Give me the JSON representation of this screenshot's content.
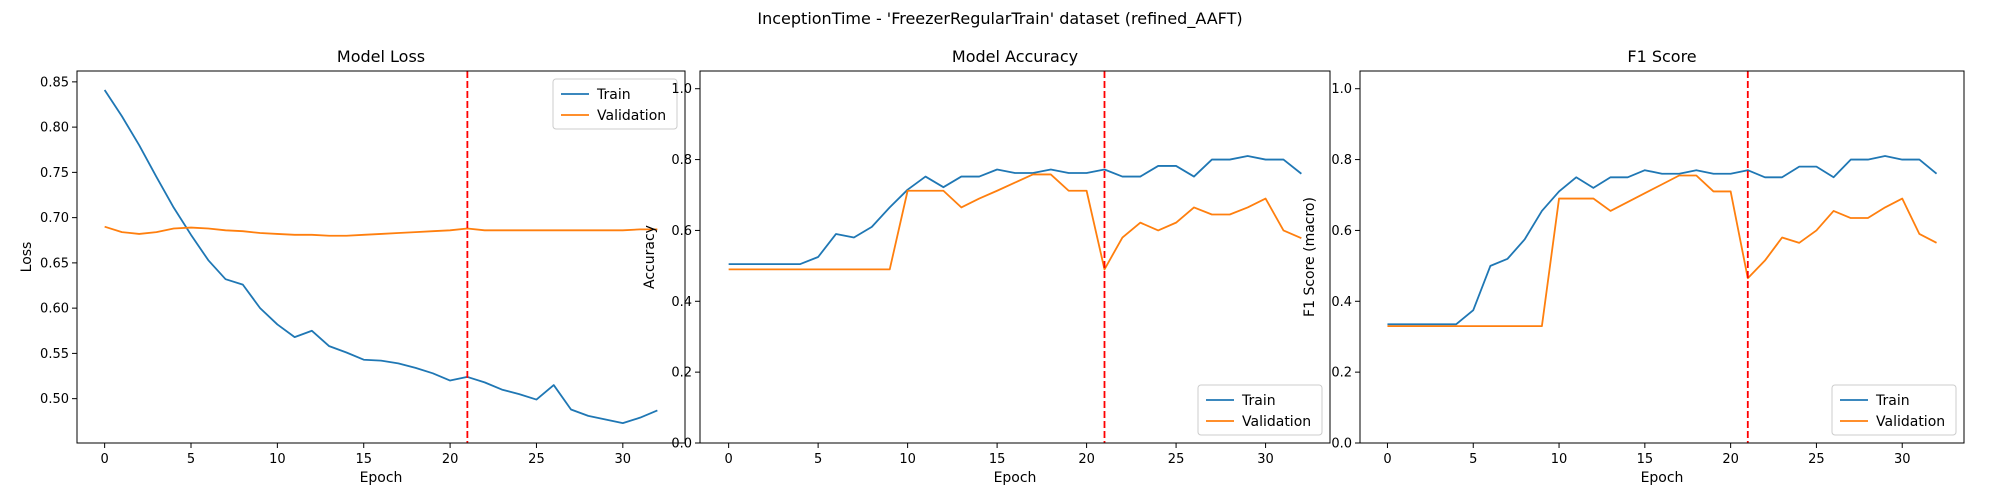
{
  "figure": {
    "title": "InceptionTime - 'FreezerRegularTrain' dataset (refined_AAFT)"
  },
  "colors": {
    "train": "#1f77b4",
    "validation": "#ff7f0e",
    "marker": "#ff0000"
  },
  "chart_data": [
    {
      "type": "line",
      "title": "Model Loss",
      "xlabel": "Epoch",
      "ylabel": "Loss",
      "xlim": [
        -1.6,
        33.6
      ],
      "ylim": [
        0.451,
        0.862
      ],
      "xticks": [
        0,
        5,
        10,
        15,
        20,
        25,
        30
      ],
      "yticks": [
        0.5,
        0.55,
        0.6,
        0.65,
        0.7,
        0.75,
        0.8,
        0.85
      ],
      "ytick_labels": [
        "0.50",
        "0.55",
        "0.60",
        "0.65",
        "0.70",
        "0.75",
        "0.80",
        "0.85"
      ],
      "vline_x": 21,
      "legend_position": "upper-right",
      "x": [
        0,
        1,
        2,
        3,
        4,
        5,
        6,
        7,
        8,
        9,
        10,
        11,
        12,
        13,
        14,
        15,
        16,
        17,
        18,
        19,
        20,
        21,
        22,
        23,
        24,
        25,
        26,
        27,
        28,
        29,
        30,
        31,
        32
      ],
      "series": [
        {
          "name": "Train",
          "values": [
            0.841,
            0.812,
            0.78,
            0.745,
            0.711,
            0.681,
            0.653,
            0.632,
            0.626,
            0.6,
            0.582,
            0.568,
            0.575,
            0.558,
            0.551,
            0.543,
            0.542,
            0.539,
            0.534,
            0.528,
            0.52,
            0.524,
            0.518,
            0.51,
            0.505,
            0.499,
            0.515,
            0.488,
            0.481,
            0.477,
            0.473,
            0.479,
            0.487
          ]
        },
        {
          "name": "Validation",
          "values": [
            0.69,
            0.684,
            0.682,
            0.684,
            0.688,
            0.689,
            0.688,
            0.686,
            0.685,
            0.683,
            0.682,
            0.681,
            0.681,
            0.68,
            0.68,
            0.681,
            0.682,
            0.683,
            0.684,
            0.685,
            0.686,
            0.688,
            0.686,
            0.686,
            0.686,
            0.686,
            0.686,
            0.686,
            0.686,
            0.686,
            0.686,
            0.687,
            0.687
          ]
        }
      ]
    },
    {
      "type": "line",
      "title": "Model Accuracy",
      "xlabel": "Epoch",
      "ylabel": "Accuracy",
      "xlim": [
        -1.6,
        33.6
      ],
      "ylim": [
        0,
        1.05
      ],
      "xticks": [
        0,
        5,
        10,
        15,
        20,
        25,
        30
      ],
      "yticks": [
        0.0,
        0.2,
        0.4,
        0.6,
        0.8,
        1.0
      ],
      "ytick_labels": [
        "0.0",
        "0.2",
        "0.4",
        "0.6",
        "0.8",
        "1.0"
      ],
      "vline_x": 21,
      "legend_position": "lower-right",
      "x": [
        0,
        1,
        2,
        3,
        4,
        5,
        6,
        7,
        8,
        9,
        10,
        11,
        12,
        13,
        14,
        15,
        16,
        17,
        18,
        19,
        20,
        21,
        22,
        23,
        24,
        25,
        26,
        27,
        28,
        29,
        30,
        31,
        32
      ],
      "series": [
        {
          "name": "Train",
          "values": [
            0.505,
            0.505,
            0.505,
            0.505,
            0.505,
            0.525,
            0.59,
            0.58,
            0.61,
            0.665,
            0.715,
            0.752,
            0.722,
            0.752,
            0.752,
            0.772,
            0.762,
            0.762,
            0.772,
            0.762,
            0.762,
            0.772,
            0.752,
            0.752,
            0.782,
            0.782,
            0.752,
            0.8,
            0.8,
            0.81,
            0.8,
            0.8,
            0.76
          ]
        },
        {
          "name": "Validation",
          "values": [
            0.49,
            0.49,
            0.49,
            0.49,
            0.49,
            0.49,
            0.49,
            0.49,
            0.49,
            0.49,
            0.712,
            0.712,
            0.712,
            0.665,
            0.69,
            0.712,
            0.735,
            0.758,
            0.758,
            0.712,
            0.712,
            0.49,
            0.58,
            0.622,
            0.6,
            0.622,
            0.665,
            0.645,
            0.645,
            0.665,
            0.69,
            0.6,
            0.578
          ]
        }
      ]
    },
    {
      "type": "line",
      "title": "F1 Score",
      "xlabel": "Epoch",
      "ylabel": "F1 Score (macro)",
      "xlim": [
        -1.6,
        33.6
      ],
      "ylim": [
        0,
        1.05
      ],
      "xticks": [
        0,
        5,
        10,
        15,
        20,
        25,
        30
      ],
      "yticks": [
        0.0,
        0.2,
        0.4,
        0.6,
        0.8,
        1.0
      ],
      "ytick_labels": [
        "0.0",
        "0.2",
        "0.4",
        "0.6",
        "0.8",
        "1.0"
      ],
      "vline_x": 21,
      "legend_position": "lower-right",
      "x": [
        0,
        1,
        2,
        3,
        4,
        5,
        6,
        7,
        8,
        9,
        10,
        11,
        12,
        13,
        14,
        15,
        16,
        17,
        18,
        19,
        20,
        21,
        22,
        23,
        24,
        25,
        26,
        27,
        28,
        29,
        30,
        31,
        32
      ],
      "series": [
        {
          "name": "Train",
          "values": [
            0.335,
            0.335,
            0.335,
            0.335,
            0.335,
            0.375,
            0.5,
            0.52,
            0.575,
            0.655,
            0.71,
            0.75,
            0.72,
            0.75,
            0.75,
            0.77,
            0.76,
            0.76,
            0.77,
            0.76,
            0.76,
            0.77,
            0.75,
            0.75,
            0.78,
            0.78,
            0.75,
            0.8,
            0.8,
            0.81,
            0.8,
            0.8,
            0.76
          ]
        },
        {
          "name": "Validation",
          "values": [
            0.33,
            0.33,
            0.33,
            0.33,
            0.33,
            0.33,
            0.33,
            0.33,
            0.33,
            0.33,
            0.69,
            0.69,
            0.69,
            0.655,
            0.68,
            0.705,
            0.73,
            0.755,
            0.755,
            0.71,
            0.71,
            0.465,
            0.515,
            0.58,
            0.565,
            0.6,
            0.655,
            0.635,
            0.635,
            0.665,
            0.69,
            0.59,
            0.565
          ]
        }
      ]
    }
  ]
}
